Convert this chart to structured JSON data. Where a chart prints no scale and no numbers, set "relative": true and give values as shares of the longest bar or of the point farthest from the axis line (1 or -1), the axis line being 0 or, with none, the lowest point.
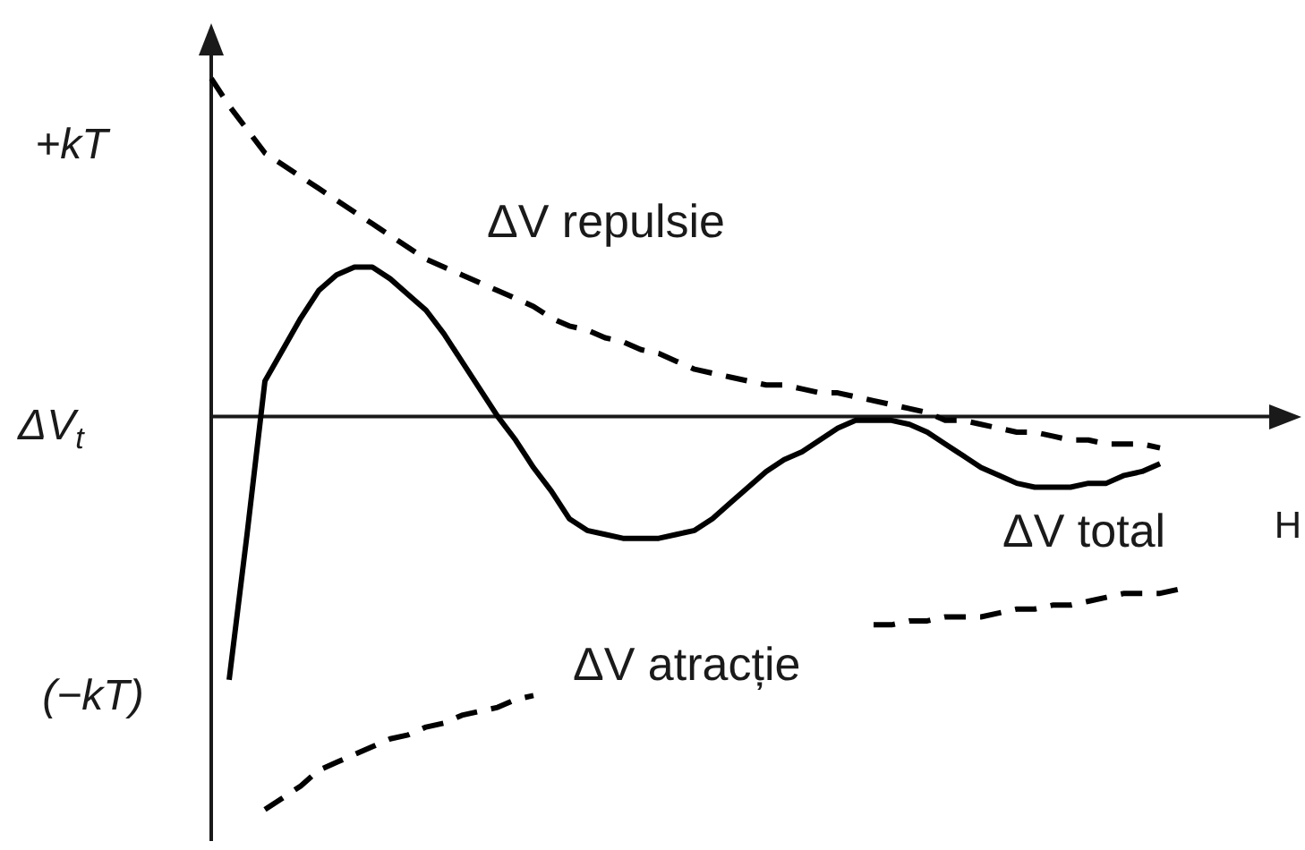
{
  "chart_data": {
    "type": "line",
    "relative": true,
    "xlabel": "H",
    "ylabel": "ΔV$_{t}$",
    "annotations": [
      "+kT",
      "(−kT)"
    ],
    "marker": "none",
    "categories": [
      null,
      null,
      null,
      null,
      null,
      null,
      null,
      null,
      null,
      null,
      null,
      null,
      null,
      null,
      null,
      null,
      null,
      null,
      null,
      null,
      null,
      null,
      null,
      null,
      null,
      null,
      null,
      null,
      null,
      null,
      null,
      null,
      null,
      null,
      null,
      null,
      null,
      null,
      null,
      null,
      null,
      null,
      null,
      null,
      null,
      null,
      null,
      null,
      null,
      null,
      null,
      null,
      null,
      null,
      null,
      null
    ],
    "series": [
      {
        "name": "ΔV repulsie",
        "color": "#000000",
        "line_style": "dashed",
        "values": [
          0.86,
          0.79,
          0.73,
          0.67,
          0.64,
          0.61,
          0.58,
          0.55,
          0.52,
          0.49,
          0.46,
          0.43,
          0.4,
          0.38,
          0.36,
          0.34,
          0.32,
          0.3,
          0.28,
          0.25,
          0.23,
          0.22,
          0.2,
          0.19,
          0.17,
          0.16,
          0.14,
          0.12,
          0.11,
          0.1,
          0.09,
          0.08,
          0.08,
          0.07,
          0.06,
          0.06,
          0.05,
          0.04,
          0.03,
          0.02,
          0.01,
          -0.01,
          -0.01,
          -0.02,
          -0.03,
          -0.04,
          -0.04,
          -0.05,
          -0.06,
          -0.06,
          -0.07,
          -0.07,
          -0.07,
          -0.08,
          null,
          null
        ]
      },
      {
        "name": "ΔV total",
        "color": "#000000",
        "line_style": "solid",
        "values": [
          null,
          -0.67,
          -0.3,
          0.09,
          0.17,
          0.25,
          0.32,
          0.36,
          0.38,
          0.38,
          0.35,
          0.31,
          0.27,
          0.21,
          0.14,
          0.07,
          0.0,
          -0.06,
          -0.13,
          -0.19,
          -0.26,
          -0.29,
          -0.3,
          -0.31,
          -0.31,
          -0.31,
          -0.3,
          -0.29,
          -0.26,
          -0.22,
          -0.18,
          -0.14,
          -0.11,
          -0.09,
          -0.06,
          -0.03,
          -0.01,
          -0.01,
          -0.01,
          -0.02,
          -0.04,
          -0.07,
          -0.1,
          -0.13,
          -0.15,
          -0.17,
          -0.18,
          -0.18,
          -0.18,
          -0.17,
          -0.17,
          -0.15,
          -0.14,
          -0.12,
          null,
          null
        ]
      },
      {
        "name": "ΔV atracție",
        "color": "#000000",
        "line_style": "dashed",
        "values": [
          null,
          null,
          null,
          -1.0,
          -0.97,
          -0.94,
          -0.9,
          -0.88,
          -0.86,
          -0.84,
          -0.82,
          -0.81,
          -0.79,
          -0.78,
          -0.76,
          -0.75,
          -0.74,
          -0.72,
          -0.71,
          null,
          null,
          null,
          null,
          null,
          null,
          null,
          null,
          null,
          null,
          null,
          null,
          null,
          null,
          null,
          null,
          null,
          null,
          -0.53,
          -0.53,
          -0.52,
          -0.52,
          -0.51,
          -0.51,
          -0.51,
          -0.5,
          -0.49,
          -0.49,
          -0.48,
          -0.48,
          -0.47,
          -0.46,
          -0.45,
          -0.45,
          -0.45,
          -0.44,
          null
        ]
      }
    ]
  }
}
